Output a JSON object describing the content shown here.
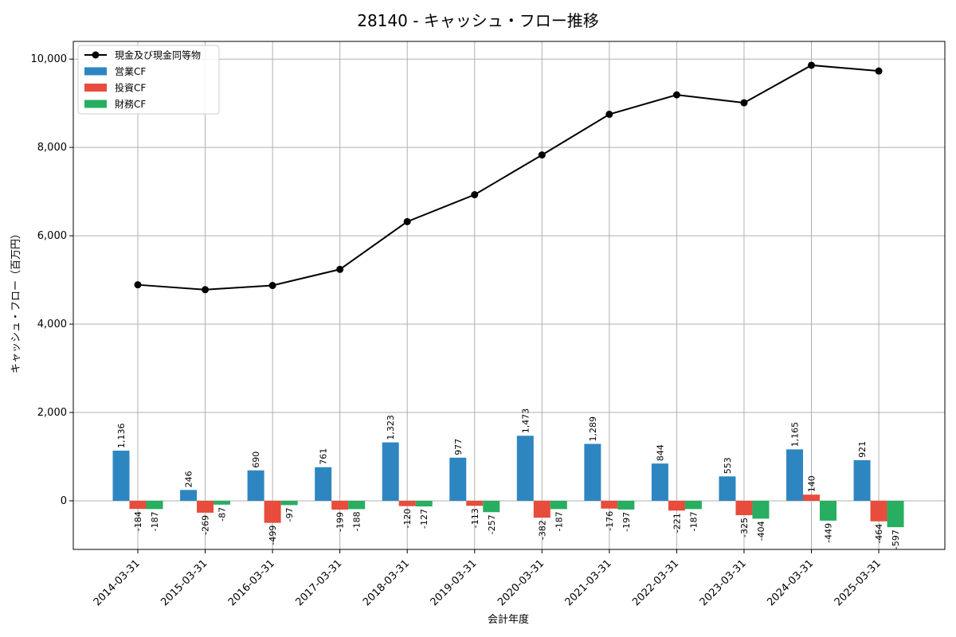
{
  "chart_data": {
    "type": "bar",
    "title": "28140 - キャッシュ・フロー推移",
    "xlabel": "会計年度",
    "ylabel": "キャッシュ・フロー（百万円）",
    "ylim": [
      -1100,
      10400
    ],
    "yticks": [
      0,
      2000,
      4000,
      6000,
      8000,
      10000
    ],
    "ytick_labels": [
      "0",
      "2,000",
      "4,000",
      "6,000",
      "8,000",
      "10,000"
    ],
    "grid": true,
    "legend_position": "top-left",
    "categories": [
      "2014-03-31",
      "2015-03-31",
      "2016-03-31",
      "2017-03-31",
      "2018-03-31",
      "2019-03-31",
      "2020-03-31",
      "2021-03-31",
      "2022-03-31",
      "2023-03-31",
      "2024-03-31",
      "2025-03-31"
    ],
    "series": [
      {
        "name": "営業CF",
        "kind": "bar",
        "color": "#2e86c1",
        "values": [
          1136,
          246,
          690,
          761,
          1323,
          977,
          1473,
          1289,
          844,
          553,
          1165,
          921
        ],
        "labels": [
          "1,136",
          "246",
          "690",
          "761",
          "1,323",
          "977",
          "1,473",
          "1,289",
          "844",
          "553",
          "1,165",
          "921"
        ]
      },
      {
        "name": "投資CF",
        "kind": "bar",
        "color": "#e74c3c",
        "values": [
          -184,
          -269,
          -499,
          -199,
          -120,
          -113,
          -382,
          -176,
          -221,
          -325,
          140,
          -464
        ],
        "labels": [
          "-184",
          "-269",
          "-499",
          "-199",
          "-120",
          "-113",
          "-382",
          "-176",
          "-221",
          "-325",
          "140",
          "-464"
        ]
      },
      {
        "name": "財務CF",
        "kind": "bar",
        "color": "#27ae60",
        "values": [
          -187,
          -87,
          -97,
          -188,
          -127,
          -257,
          -187,
          -197,
          -187,
          -404,
          -449,
          -597
        ],
        "labels": [
          "-187",
          "-87",
          "-97",
          "-188",
          "-127",
          "-257",
          "-187",
          "-197",
          "-187",
          "-404",
          "-449",
          "-597"
        ]
      },
      {
        "name": "現金及び現金同等物",
        "kind": "line",
        "color": "#000000",
        "values": [
          4890,
          4780,
          4875,
          5240,
          6320,
          6930,
          7830,
          8750,
          9190,
          9010,
          9860,
          9730
        ]
      }
    ]
  }
}
